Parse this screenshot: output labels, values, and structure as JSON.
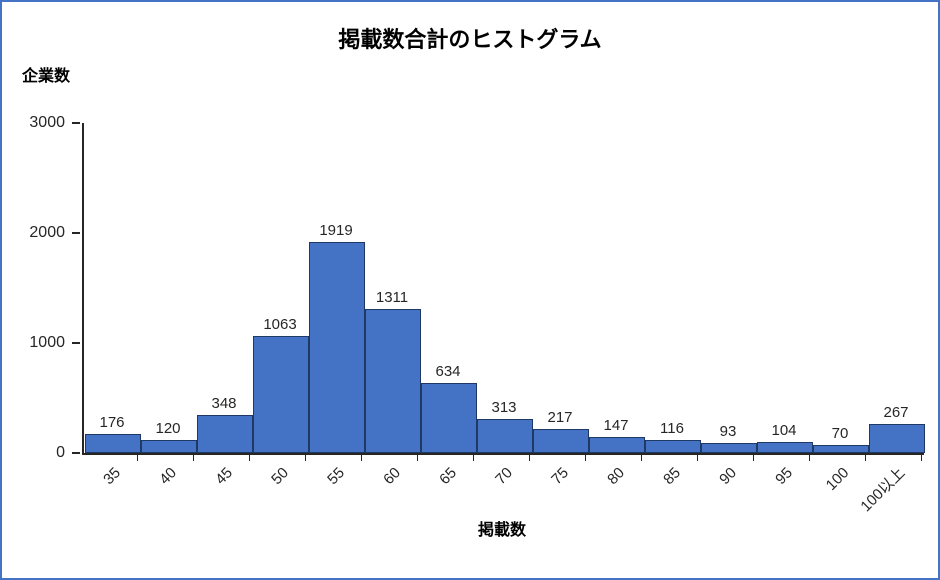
{
  "title": "掲載数合計のヒストグラム",
  "y_axis_label": "企業数",
  "x_axis_label": "掲載数",
  "colors": {
    "frame_border": "#4472C4",
    "bar_fill": "#4472C4",
    "bar_border": "#1F3864",
    "axis_line": "#262626"
  },
  "chart_data": {
    "type": "bar",
    "title": "掲載数合計のヒストグラム",
    "xlabel": "掲載数",
    "ylabel": "企業数",
    "categories": [
      "35",
      "40",
      "45",
      "50",
      "55",
      "60",
      "65",
      "70",
      "75",
      "80",
      "85",
      "90",
      "95",
      "100",
      "100以上"
    ],
    "values": [
      176,
      120,
      348,
      1063,
      1919,
      1311,
      634,
      313,
      217,
      147,
      116,
      93,
      104,
      70,
      267
    ],
    "ylim": [
      0,
      3000
    ],
    "y_ticks": [
      0,
      1000,
      2000,
      3000
    ],
    "grid": false,
    "legend": "none",
    "data_labels": true,
    "bar_gap": 0,
    "x_tick_rotation": -45
  }
}
